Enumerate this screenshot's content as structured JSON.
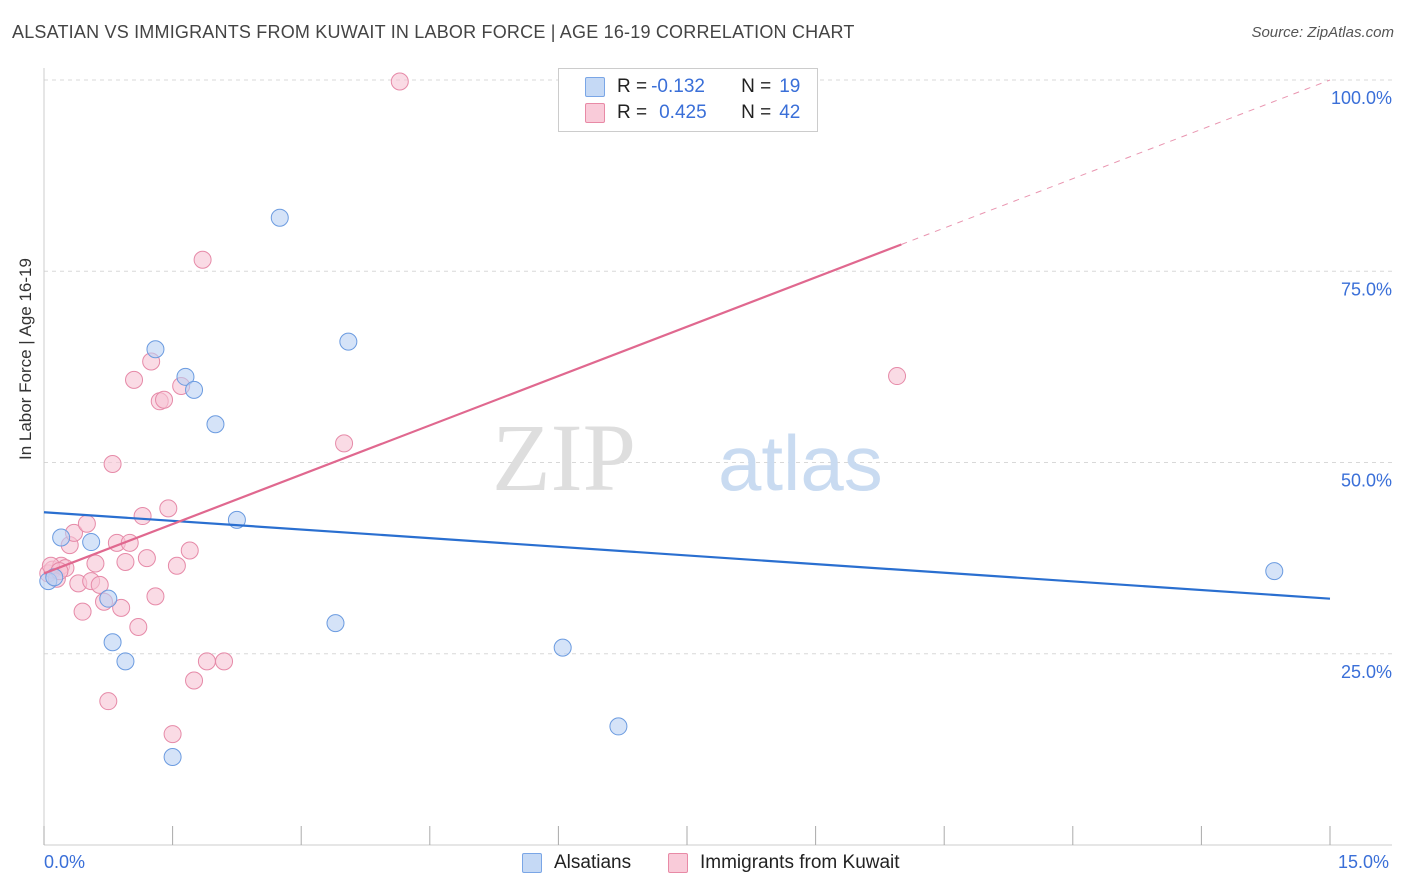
{
  "header": {
    "title": "ALSATIAN VS IMMIGRANTS FROM KUWAIT IN LABOR FORCE | AGE 16-19 CORRELATION CHART",
    "source": "Source: ZipAtlas.com"
  },
  "watermark": {
    "zip": "ZIP",
    "atlas": "atlas"
  },
  "legend_stats": [
    {
      "r_label": "R = ",
      "r_value": "-0.132",
      "n_label": "N = ",
      "n_value": "19",
      "color": "#7aa6e6",
      "fill": "#c5d9f5"
    },
    {
      "r_label": "R = ",
      "r_value": "0.425",
      "n_label": "N = ",
      "n_value": "42",
      "color": "#e88aa6",
      "fill": "#f9cbd9"
    }
  ],
  "colors": {
    "alsatian_fill": "#b9d1f3",
    "alsatian_stroke": "#6b9be0",
    "alsatian_line": "#2a6fd0",
    "kuwait_fill": "#f6c3d3",
    "kuwait_stroke": "#e68aa8",
    "kuwait_line": "#e0688f",
    "tick_label": "#3a6fd8",
    "grid": "#d8d8d8"
  },
  "chart_data": {
    "type": "scatter",
    "title": "ALSATIAN VS IMMIGRANTS FROM KUWAIT IN LABOR FORCE | AGE 16-19 CORRELATION CHART",
    "xlabel": "",
    "ylabel": "In Labor Force | Age 16-19",
    "xlim": [
      0,
      15
    ],
    "ylim": [
      0,
      100
    ],
    "x_tick_labels": [
      "0.0%",
      "15.0%"
    ],
    "y_tick_labels": [
      "25.0%",
      "50.0%",
      "75.0%",
      "100.0%"
    ],
    "y_ticks": [
      25,
      50,
      75,
      100
    ],
    "grid": true,
    "legend_position": "bottom",
    "series": [
      {
        "name": "Alsatians",
        "r": -0.132,
        "n": 19,
        "points": [
          [
            0.05,
            34.5
          ],
          [
            0.2,
            40.2
          ],
          [
            0.55,
            39.6
          ],
          [
            0.75,
            32.2
          ],
          [
            0.8,
            26.5
          ],
          [
            0.95,
            24.0
          ],
          [
            1.3,
            64.8
          ],
          [
            1.5,
            11.5
          ],
          [
            1.65,
            61.2
          ],
          [
            1.75,
            59.5
          ],
          [
            2.0,
            55.0
          ],
          [
            2.25,
            42.5
          ],
          [
            2.75,
            82.0
          ],
          [
            3.4,
            29.0
          ],
          [
            3.55,
            65.8
          ],
          [
            6.05,
            25.8
          ],
          [
            6.7,
            15.5
          ],
          [
            14.35,
            35.8
          ],
          [
            0.12,
            35.0
          ]
        ],
        "trend": {
          "x": [
            0,
            15
          ],
          "y": [
            43.5,
            32.2
          ]
        }
      },
      {
        "name": "Immigrants from Kuwait",
        "r": 0.425,
        "n": 42,
        "points": [
          [
            0.05,
            35.5
          ],
          [
            0.1,
            36.0
          ],
          [
            0.15,
            34.8
          ],
          [
            0.2,
            36.5
          ],
          [
            0.25,
            36.2
          ],
          [
            0.3,
            39.2
          ],
          [
            0.35,
            40.8
          ],
          [
            0.4,
            34.2
          ],
          [
            0.45,
            30.5
          ],
          [
            0.5,
            42.0
          ],
          [
            0.55,
            34.5
          ],
          [
            0.6,
            36.8
          ],
          [
            0.65,
            34.0
          ],
          [
            0.7,
            31.8
          ],
          [
            0.75,
            18.8
          ],
          [
            0.8,
            49.8
          ],
          [
            0.85,
            39.5
          ],
          [
            0.9,
            31.0
          ],
          [
            0.95,
            37.0
          ],
          [
            1.0,
            39.5
          ],
          [
            1.05,
            60.8
          ],
          [
            1.1,
            28.5
          ],
          [
            1.15,
            43.0
          ],
          [
            1.2,
            37.5
          ],
          [
            1.25,
            63.2
          ],
          [
            1.3,
            32.5
          ],
          [
            1.35,
            58.0
          ],
          [
            1.4,
            58.2
          ],
          [
            1.45,
            44.0
          ],
          [
            1.5,
            14.5
          ],
          [
            1.55,
            36.5
          ],
          [
            1.6,
            60.0
          ],
          [
            1.7,
            38.5
          ],
          [
            1.75,
            21.5
          ],
          [
            1.85,
            76.5
          ],
          [
            1.9,
            24.0
          ],
          [
            2.1,
            24.0
          ],
          [
            3.5,
            52.5
          ],
          [
            4.15,
            99.8
          ],
          [
            9.95,
            61.3
          ],
          [
            0.08,
            36.5
          ],
          [
            0.18,
            35.8
          ]
        ],
        "trend": {
          "x": [
            0,
            10.0
          ],
          "y": [
            35.5,
            78.5
          ]
        },
        "trend_extension": {
          "x": [
            10.0,
            15.0
          ],
          "y": [
            78.5,
            100.0
          ]
        }
      }
    ]
  },
  "bottom_legend": [
    {
      "label": "Alsatians"
    },
    {
      "label": "Immigrants from Kuwait"
    }
  ]
}
